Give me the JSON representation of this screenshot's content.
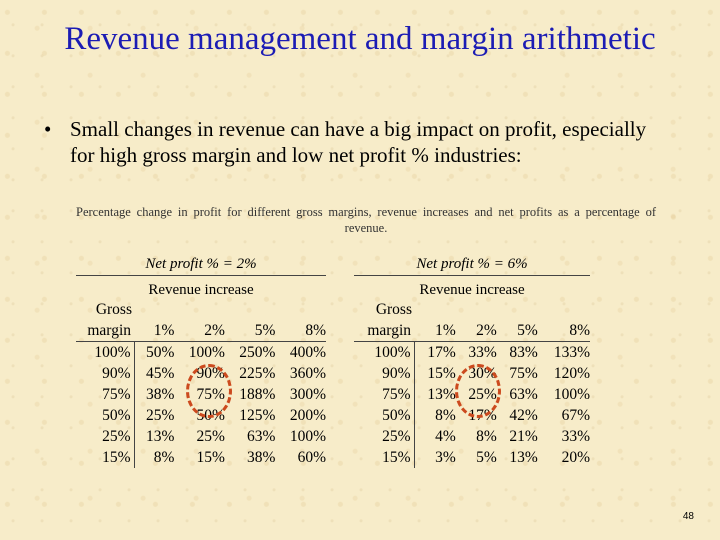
{
  "slide": {
    "title": "Revenue management and margin arithmetic",
    "bullet": "Small changes in revenue can have a big impact on profit, especially for high gross margin and low net profit % industries:",
    "bullet_marker": "•",
    "caption": "Percentage change in profit for different gross margins, revenue increases and net profits as a percentage of revenue.",
    "page_number": "48"
  },
  "tables": [
    {
      "net_profit_label": "Net profit % = 2%",
      "revenue_increase_label": "Revenue increase",
      "gross_label": "Gross",
      "columns": [
        "margin",
        "1%",
        "2%",
        "5%",
        "8%"
      ],
      "rows": [
        [
          "100%",
          "50%",
          "100%",
          "250%",
          "400%"
        ],
        [
          "90%",
          "45%",
          "90%",
          "225%",
          "360%"
        ],
        [
          "75%",
          "38%",
          "75%",
          "188%",
          "300%"
        ],
        [
          "50%",
          "25%",
          "50%",
          "125%",
          "200%"
        ],
        [
          "25%",
          "13%",
          "25%",
          "63%",
          "100%"
        ],
        [
          "15%",
          "8%",
          "15%",
          "38%",
          "60%"
        ]
      ]
    },
    {
      "net_profit_label": "Net profit % = 6%",
      "revenue_increase_label": "Revenue increase",
      "gross_label": "Gross",
      "columns": [
        "margin",
        "1%",
        "2%",
        "5%",
        "8%"
      ],
      "rows": [
        [
          "100%",
          "17%",
          "33%",
          "83%",
          "133%"
        ],
        [
          "90%",
          "15%",
          "30%",
          "75%",
          "120%"
        ],
        [
          "75%",
          "13%",
          "25%",
          "63%",
          "100%"
        ],
        [
          "50%",
          "8%",
          "17%",
          "42%",
          "67%"
        ],
        [
          "25%",
          "4%",
          "8%",
          "21%",
          "33%"
        ],
        [
          "15%",
          "3%",
          "5%",
          "13%",
          "20%"
        ]
      ]
    }
  ],
  "highlight_color": "#cc4a1e",
  "title_color": "#1c1cb4"
}
